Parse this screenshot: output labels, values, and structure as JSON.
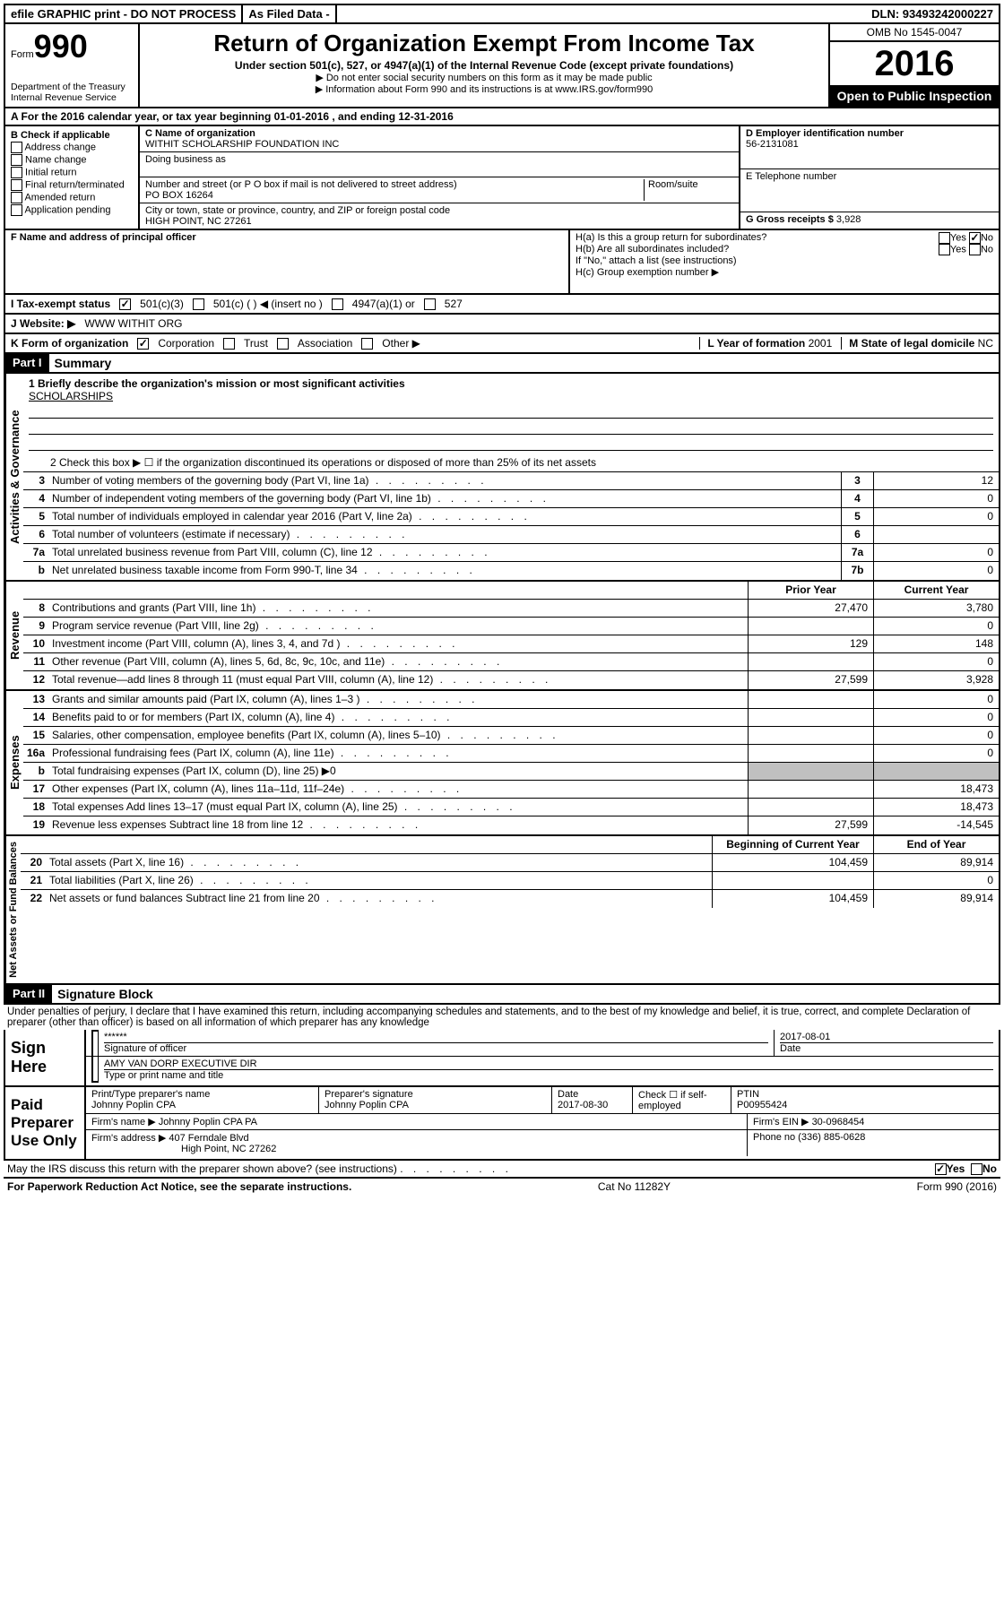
{
  "topbar": {
    "efile": "efile GRAPHIC print - DO NOT PROCESS",
    "asfiled": "As Filed Data -",
    "dln": "DLN: 93493242000227"
  },
  "header": {
    "form_prefix": "Form",
    "form_num": "990",
    "dept": "Department of the Treasury",
    "irs": "Internal Revenue Service",
    "title": "Return of Organization Exempt From Income Tax",
    "subtitle": "Under section 501(c), 527, or 4947(a)(1) of the Internal Revenue Code (except private foundations)",
    "note1": "▶ Do not enter social security numbers on this form as it may be made public",
    "note2": "▶ Information about Form 990 and its instructions is at www.IRS.gov/form990",
    "omb": "OMB No 1545-0047",
    "year": "2016",
    "open_pub": "Open to Public Inspection"
  },
  "rowA": "A  For the 2016 calendar year, or tax year beginning 01-01-2016   , and ending 12-31-2016",
  "sectionB": {
    "label": "B Check if applicable",
    "items": [
      "Address change",
      "Name change",
      "Initial return",
      "Final return/terminated",
      "Amended return",
      "Application pending"
    ]
  },
  "sectionC": {
    "name_label": "C Name of organization",
    "name": "WITHIT SCHOLARSHIP FOUNDATION INC",
    "dba_label": "Doing business as",
    "addr_label": "Number and street (or P O  box if mail is not delivered to street address)",
    "addr": "PO BOX 16264",
    "room_label": "Room/suite",
    "city_label": "City or town, state or province, country, and ZIP or foreign postal code",
    "city": "HIGH POINT, NC  27261"
  },
  "sectionD": {
    "label": "D Employer identification number",
    "value": "56-2131081"
  },
  "sectionE": {
    "label": "E Telephone number"
  },
  "sectionG": {
    "label": "G Gross receipts $",
    "value": "3,928"
  },
  "sectionF": {
    "label": "F  Name and address of principal officer"
  },
  "sectionH": {
    "ha": "H(a)  Is this a group return for subordinates?",
    "hb": "H(b)  Are all subordinates included?",
    "hb_note": "If \"No,\" attach a list  (see instructions)",
    "hc": "H(c)  Group exemption number ▶",
    "yes": "Yes",
    "no": "No"
  },
  "rowI": {
    "label": "I   Tax-exempt status",
    "opts": [
      "501(c)(3)",
      "501(c) (   ) ◀ (insert no )",
      "4947(a)(1) or",
      "527"
    ]
  },
  "rowJ": {
    "label": "J  Website: ▶",
    "value": "WWW WITHIT ORG"
  },
  "rowK": {
    "label": "K Form of organization",
    "opts": [
      "Corporation",
      "Trust",
      "Association",
      "Other ▶"
    ]
  },
  "rowL": {
    "label": "L Year of formation",
    "value": "2001"
  },
  "rowM": {
    "label": "M State of legal domicile",
    "value": "NC"
  },
  "part1": {
    "num": "Part I",
    "title": "Summary"
  },
  "summary": {
    "line1_label": "1  Briefly describe the organization's mission or most significant activities",
    "line1_value": "SCHOLARSHIPS",
    "line2": "2   Check this box ▶ ☐  if the organization discontinued its operations or disposed of more than 25% of its net assets",
    "governance": [
      {
        "n": "3",
        "d": "Number of voting members of the governing body (Part VI, line 1a)",
        "b": "3",
        "v": "12"
      },
      {
        "n": "4",
        "d": "Number of independent voting members of the governing body (Part VI, line 1b)",
        "b": "4",
        "v": "0"
      },
      {
        "n": "5",
        "d": "Total number of individuals employed in calendar year 2016 (Part V, line 2a)",
        "b": "5",
        "v": "0"
      },
      {
        "n": "6",
        "d": "Total number of volunteers (estimate if necessary)",
        "b": "6",
        "v": ""
      },
      {
        "n": "7a",
        "d": "Total unrelated business revenue from Part VIII, column (C), line 12",
        "b": "7a",
        "v": "0"
      },
      {
        "n": "b",
        "d": "Net unrelated business taxable income from Form 990-T, line 34",
        "b": "7b",
        "v": "0"
      }
    ],
    "hdr_prior": "Prior Year",
    "hdr_curr": "Current Year",
    "revenue": [
      {
        "n": "8",
        "d": "Contributions and grants (Part VIII, line 1h)",
        "p": "27,470",
        "c": "3,780"
      },
      {
        "n": "9",
        "d": "Program service revenue (Part VIII, line 2g)",
        "p": "",
        "c": "0"
      },
      {
        "n": "10",
        "d": "Investment income (Part VIII, column (A), lines 3, 4, and 7d )",
        "p": "129",
        "c": "148"
      },
      {
        "n": "11",
        "d": "Other revenue (Part VIII, column (A), lines 5, 6d, 8c, 9c, 10c, and 11e)",
        "p": "",
        "c": "0"
      },
      {
        "n": "12",
        "d": "Total revenue—add lines 8 through 11 (must equal Part VIII, column (A), line 12)",
        "p": "27,599",
        "c": "3,928"
      }
    ],
    "expenses": [
      {
        "n": "13",
        "d": "Grants and similar amounts paid (Part IX, column (A), lines 1–3 )",
        "p": "",
        "c": "0"
      },
      {
        "n": "14",
        "d": "Benefits paid to or for members (Part IX, column (A), line 4)",
        "p": "",
        "c": "0"
      },
      {
        "n": "15",
        "d": "Salaries, other compensation, employee benefits (Part IX, column (A), lines 5–10)",
        "p": "",
        "c": "0"
      },
      {
        "n": "16a",
        "d": "Professional fundraising fees (Part IX, column (A), line 11e)",
        "p": "",
        "c": "0"
      },
      {
        "n": "b",
        "d": "Total fundraising expenses (Part IX, column (D), line 25) ▶0",
        "p": "shaded",
        "c": "shaded"
      },
      {
        "n": "17",
        "d": "Other expenses (Part IX, column (A), lines 11a–11d, 11f–24e)",
        "p": "",
        "c": "18,473"
      },
      {
        "n": "18",
        "d": "Total expenses  Add lines 13–17 (must equal Part IX, column (A), line 25)",
        "p": "",
        "c": "18,473"
      },
      {
        "n": "19",
        "d": "Revenue less expenses  Subtract line 18 from line 12",
        "p": "27,599",
        "c": "-14,545"
      }
    ],
    "hdr_beg": "Beginning of Current Year",
    "hdr_end": "End of Year",
    "netassets": [
      {
        "n": "20",
        "d": "Total assets (Part X, line 16)",
        "p": "104,459",
        "c": "89,914"
      },
      {
        "n": "21",
        "d": "Total liabilities (Part X, line 26)",
        "p": "",
        "c": "0"
      },
      {
        "n": "22",
        "d": "Net assets or fund balances  Subtract line 21 from line 20",
        "p": "104,459",
        "c": "89,914"
      }
    ],
    "vlabels": {
      "gov": "Activities & Governance",
      "rev": "Revenue",
      "exp": "Expenses",
      "net": "Net Assets or\nFund Balances"
    }
  },
  "part2": {
    "num": "Part II",
    "title": "Signature Block"
  },
  "sig": {
    "perjury": "Under penalties of perjury, I declare that I have examined this return, including accompanying schedules and statements, and to the best of my knowledge and belief, it is true, correct, and complete  Declaration of preparer (other than officer) is based on all information of which preparer has any knowledge",
    "sign_here": "Sign Here",
    "stars": "******",
    "sig_officer": "Signature of officer",
    "date": "Date",
    "sig_date": "2017-08-01",
    "name_title": "AMY VAN DORP  EXECUTIVE DIR",
    "name_title_label": "Type or print name and title",
    "paid": "Paid Preparer Use Only",
    "prep_name_label": "Print/Type preparer's name",
    "prep_name": "Johnny Poplin CPA",
    "prep_sig_label": "Preparer's signature",
    "prep_sig": "Johnny Poplin CPA",
    "prep_date": "2017-08-30",
    "check_self": "Check ☐ if self-employed",
    "ptin_label": "PTIN",
    "ptin": "P00955424",
    "firm_name_label": "Firm's name    ▶",
    "firm_name": "Johnny Poplin CPA PA",
    "firm_ein_label": "Firm's EIN ▶",
    "firm_ein": "30-0968454",
    "firm_addr_label": "Firm's address ▶",
    "firm_addr": "407 Ferndale Blvd",
    "firm_city": "High Point, NC  27262",
    "phone_label": "Phone no",
    "phone": "(336) 885-0628"
  },
  "footer": {
    "discuss": "May the IRS discuss this return with the preparer shown above? (see instructions)",
    "yes": "Yes",
    "no": "No",
    "pra": "For Paperwork Reduction Act Notice, see the separate instructions.",
    "cat": "Cat  No  11282Y",
    "form": "Form 990 (2016)"
  }
}
